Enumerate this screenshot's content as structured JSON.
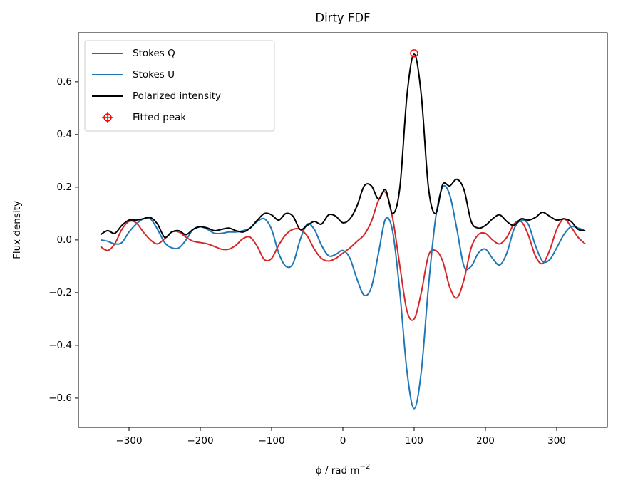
{
  "chart_data": {
    "type": "line",
    "title": "Dirty FDF",
    "xlabel": {
      "text": "ϕ / rad m",
      "superscript": "−2"
    },
    "ylabel": "Flux density",
    "xlim": [
      -371,
      371
    ],
    "ylim": [
      -0.711,
      0.786
    ],
    "xticks": [
      {
        "value": -300,
        "label": "−300"
      },
      {
        "value": -200,
        "label": "−200"
      },
      {
        "value": -100,
        "label": "−100"
      },
      0,
      100,
      200,
      300
    ],
    "yticks": [
      {
        "value": -0.6,
        "label": "−0.6"
      },
      {
        "value": -0.4,
        "label": "−0.4"
      },
      {
        "value": -0.2,
        "label": "−0.2"
      },
      {
        "value": 0,
        "label": "0.0"
      },
      0.2,
      0.4,
      0.6
    ],
    "legend": "upper left",
    "x": [
      -340,
      -330,
      -320,
      -310,
      -300,
      -290,
      -280,
      -270,
      -260,
      -250,
      -240,
      -230,
      -220,
      -210,
      -200,
      -190,
      -180,
      -170,
      -160,
      -150,
      -140,
      -130,
      -120,
      -110,
      -100,
      -90,
      -80,
      -70,
      -60,
      -50,
      -40,
      -30,
      -20,
      -10,
      0,
      10,
      20,
      30,
      40,
      50,
      60,
      70,
      80,
      90,
      100,
      110,
      120,
      130,
      140,
      150,
      160,
      170,
      180,
      190,
      200,
      210,
      220,
      230,
      240,
      250,
      260,
      270,
      280,
      290,
      300,
      310,
      320,
      330,
      340
    ],
    "series": [
      {
        "name": "Stokes Q",
        "color": "#d62728",
        "values": [
          -0.025,
          -0.04,
          -0.015,
          0.04,
          0.07,
          0.065,
          0.03,
          0.0,
          -0.015,
          0.005,
          0.03,
          0.03,
          0.01,
          -0.005,
          -0.01,
          -0.015,
          -0.025,
          -0.035,
          -0.035,
          -0.02,
          0.005,
          0.01,
          -0.025,
          -0.075,
          -0.07,
          -0.02,
          0.02,
          0.04,
          0.04,
          0.015,
          -0.035,
          -0.07,
          -0.08,
          -0.07,
          -0.05,
          -0.03,
          -0.005,
          0.02,
          0.07,
          0.15,
          0.18,
          0.08,
          -0.1,
          -0.27,
          -0.3,
          -0.2,
          -0.06,
          -0.04,
          -0.08,
          -0.18,
          -0.22,
          -0.15,
          -0.03,
          0.02,
          0.025,
          0.0,
          -0.015,
          0.01,
          0.06,
          0.07,
          0.02,
          -0.06,
          -0.09,
          -0.04,
          0.04,
          0.08,
          0.05,
          0.01,
          -0.015
        ]
      },
      {
        "name": "Stokes U",
        "color": "#1f77b4",
        "values": [
          0.0,
          -0.005,
          -0.015,
          -0.01,
          0.03,
          0.06,
          0.08,
          0.08,
          0.04,
          -0.01,
          -0.03,
          -0.03,
          0.0,
          0.04,
          0.05,
          0.04,
          0.025,
          0.025,
          0.03,
          0.03,
          0.035,
          0.045,
          0.07,
          0.08,
          0.04,
          -0.05,
          -0.1,
          -0.09,
          0.0,
          0.06,
          0.04,
          -0.02,
          -0.06,
          -0.055,
          -0.04,
          -0.07,
          -0.15,
          -0.21,
          -0.18,
          -0.05,
          0.08,
          0.03,
          -0.2,
          -0.5,
          -0.64,
          -0.5,
          -0.18,
          0.08,
          0.2,
          0.17,
          0.04,
          -0.1,
          -0.1,
          -0.05,
          -0.035,
          -0.07,
          -0.095,
          -0.05,
          0.04,
          0.075,
          0.06,
          -0.02,
          -0.08,
          -0.075,
          -0.03,
          0.02,
          0.05,
          0.045,
          0.035
        ]
      },
      {
        "name": "Polarized intensity",
        "color": "#000000",
        "values": [
          0.02,
          0.035,
          0.025,
          0.055,
          0.075,
          0.075,
          0.08,
          0.085,
          0.06,
          0.01,
          0.03,
          0.035,
          0.02,
          0.04,
          0.05,
          0.045,
          0.035,
          0.04,
          0.045,
          0.035,
          0.03,
          0.045,
          0.075,
          0.1,
          0.095,
          0.075,
          0.1,
          0.09,
          0.04,
          0.055,
          0.07,
          0.06,
          0.095,
          0.09,
          0.065,
          0.08,
          0.13,
          0.205,
          0.205,
          0.155,
          0.19,
          0.1,
          0.2,
          0.55,
          0.705,
          0.55,
          0.2,
          0.1,
          0.21,
          0.205,
          0.23,
          0.19,
          0.07,
          0.045,
          0.055,
          0.08,
          0.095,
          0.07,
          0.055,
          0.08,
          0.075,
          0.085,
          0.105,
          0.09,
          0.075,
          0.08,
          0.07,
          0.04,
          0.035
        ]
      }
    ],
    "peak": {
      "name": "Fitted peak",
      "color": "#ff0000",
      "x": 100,
      "y": 0.708
    }
  }
}
